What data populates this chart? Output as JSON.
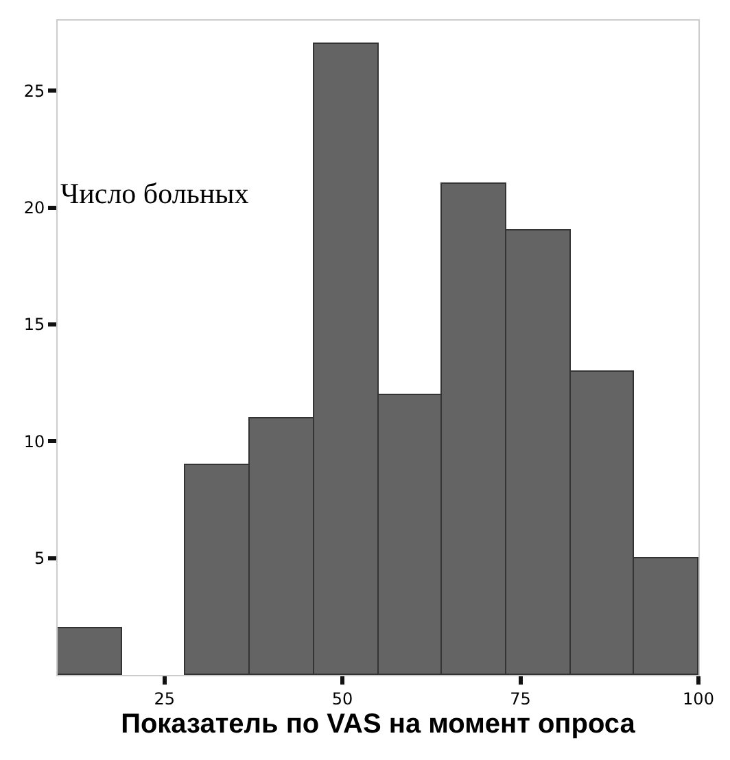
{
  "chart_data": {
    "type": "histogram",
    "xlabel": "Показатель по VAS на момент опроса",
    "ylabel": "Число больных",
    "bins": [
      10,
      19,
      28,
      37,
      46,
      55,
      64,
      73,
      82,
      91,
      100
    ],
    "values": [
      2,
      0,
      9,
      11,
      27,
      12,
      21,
      19,
      13,
      5
    ],
    "color": "#646464",
    "xlim": [
      10,
      100
    ],
    "xticks": [
      25,
      50,
      75,
      100
    ],
    "ylim": [
      0,
      28
    ],
    "yticks": [
      5,
      10,
      15,
      20,
      25
    ]
  }
}
